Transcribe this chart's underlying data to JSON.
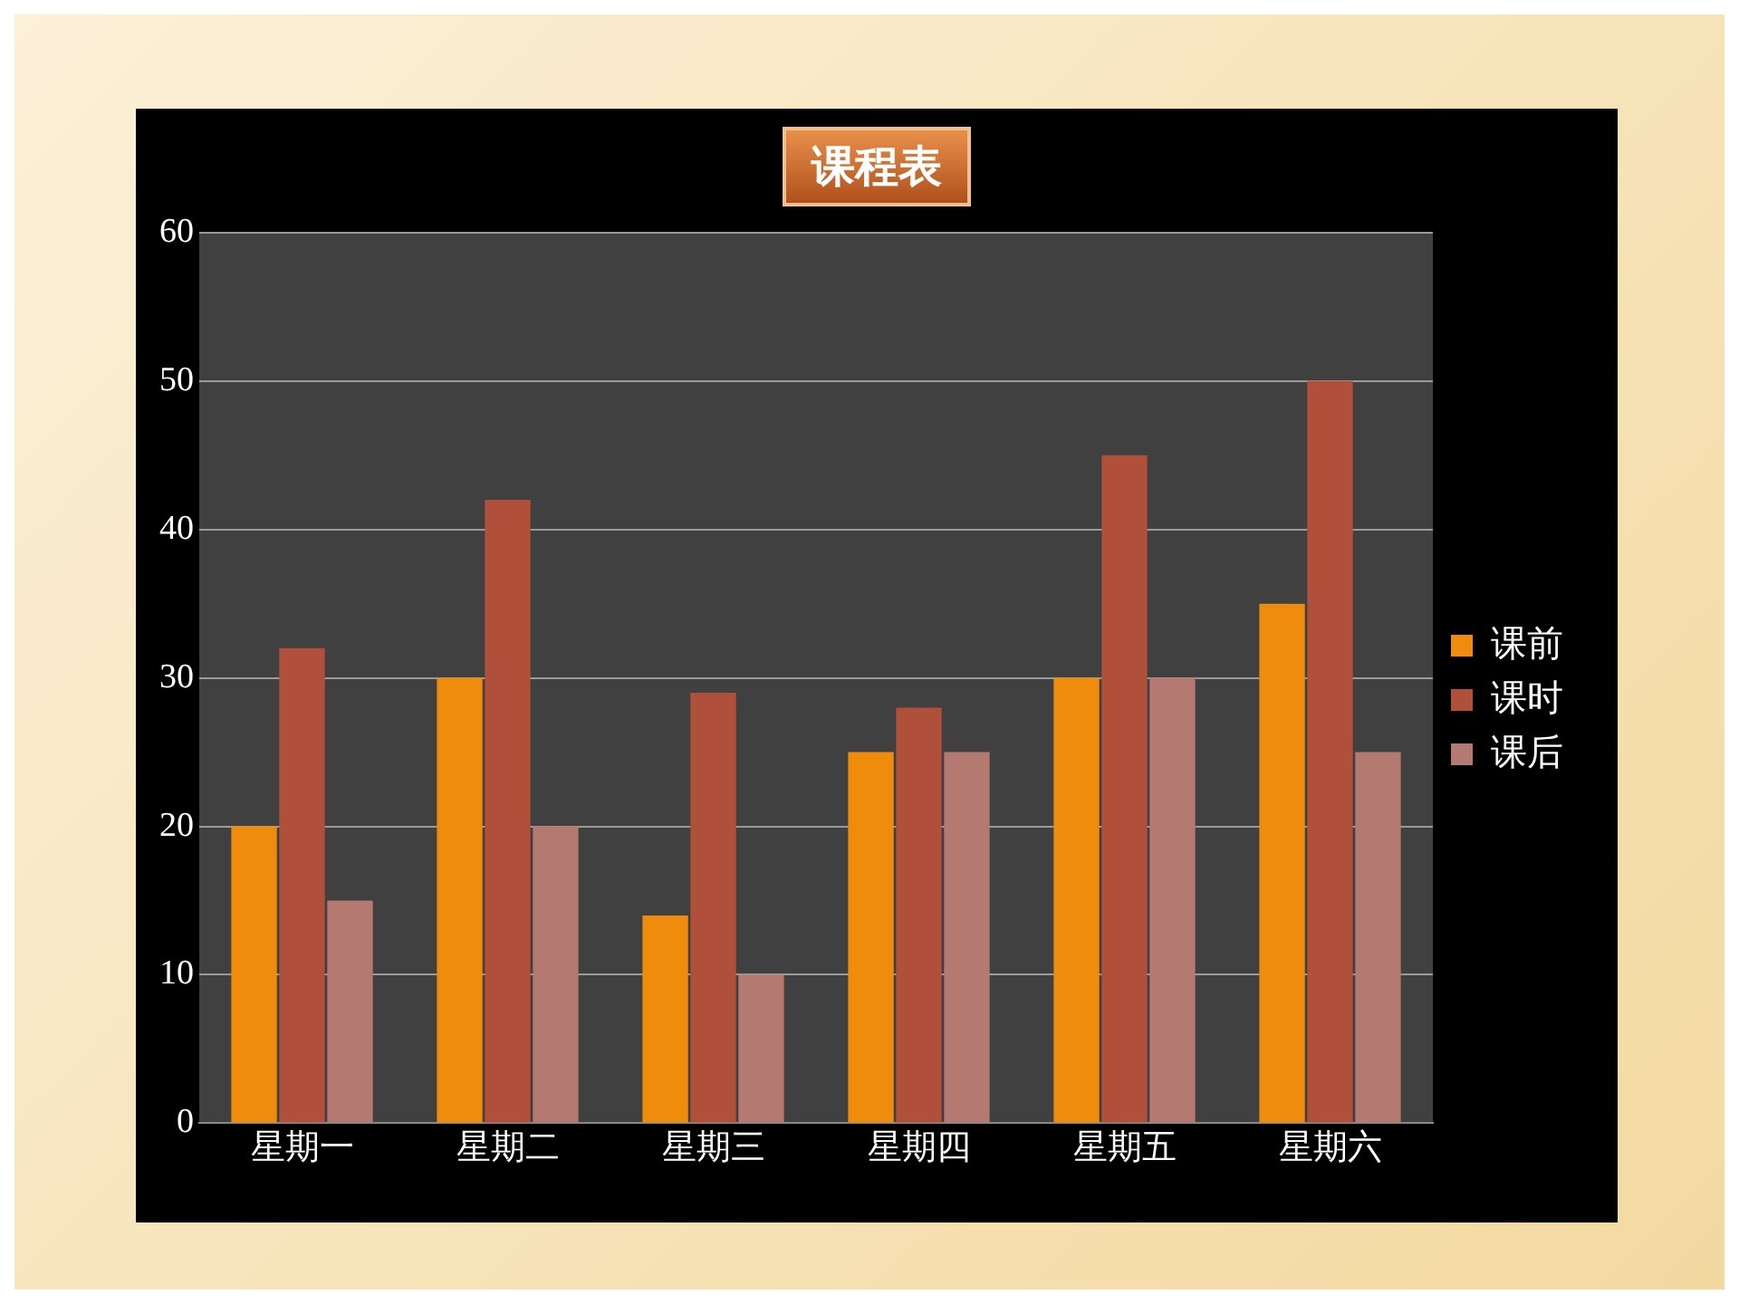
{
  "chart_data": {
    "type": "bar",
    "title": "课程表",
    "categories": [
      "星期一",
      "星期二",
      "星期三",
      "星期四",
      "星期五",
      "星期六"
    ],
    "series": [
      {
        "name": "课前",
        "color": "#f08c0c",
        "values": [
          20,
          30,
          14,
          25,
          30,
          35
        ]
      },
      {
        "name": "课时",
        "color": "#b0503a",
        "values": [
          32,
          42,
          29,
          28,
          45,
          50
        ]
      },
      {
        "name": "课后",
        "color": "#b47a72",
        "values": [
          15,
          20,
          10,
          25,
          30,
          25
        ]
      }
    ],
    "ylim": [
      0,
      60
    ],
    "yticks": [
      0,
      10,
      20,
      30,
      40,
      50,
      60
    ],
    "grid": "y",
    "legend": "right"
  }
}
